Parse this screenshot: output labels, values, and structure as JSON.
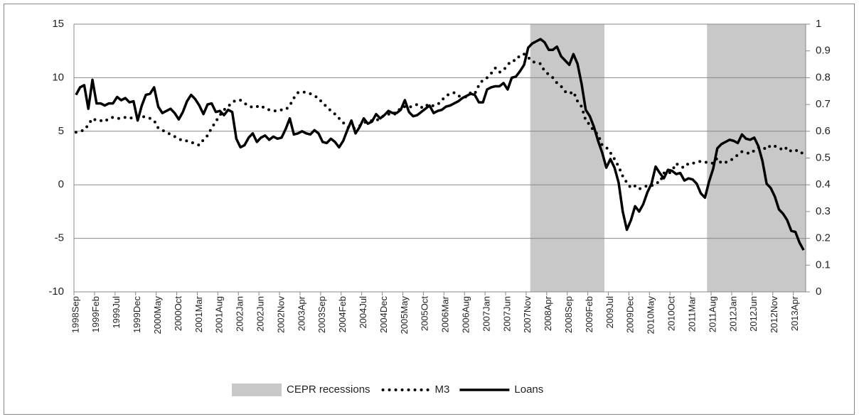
{
  "chart_data": {
    "type": "combo",
    "categories": [
      "1998Sep",
      null,
      null,
      null,
      null,
      "1999Feb",
      null,
      null,
      null,
      null,
      "1999Jul",
      null,
      null,
      null,
      null,
      "1999Dec",
      null,
      null,
      null,
      null,
      "2000May",
      null,
      null,
      null,
      null,
      "2000Oct",
      null,
      null,
      null,
      null,
      "2001Mar",
      null,
      null,
      null,
      null,
      "2001Aug",
      null,
      null,
      null,
      null,
      "2002Jan",
      null,
      null,
      null,
      null,
      "2002Jun",
      null,
      null,
      null,
      null,
      "2002Nov",
      null,
      null,
      null,
      null,
      "2003Apr",
      null,
      null,
      null,
      null,
      "2003Sep",
      null,
      null,
      null,
      null,
      "2004Feb",
      null,
      null,
      null,
      null,
      "2004Jul",
      null,
      null,
      null,
      null,
      "2004Dec",
      null,
      null,
      null,
      null,
      "2005May",
      null,
      null,
      null,
      null,
      "2005Oct",
      null,
      null,
      null,
      null,
      "2006Mar",
      null,
      null,
      null,
      null,
      "2006Aug",
      null,
      null,
      null,
      null,
      "2007Jan",
      null,
      null,
      null,
      null,
      "2007Jun",
      null,
      null,
      null,
      null,
      "2007Nov",
      null,
      null,
      null,
      null,
      "2008Apr",
      null,
      null,
      null,
      null,
      "2008Sep",
      null,
      null,
      null,
      null,
      "2009Feb",
      null,
      null,
      null,
      null,
      "2009Jul",
      null,
      null,
      null,
      null,
      "2009Dec",
      null,
      null,
      null,
      null,
      "2010May",
      null,
      null,
      null,
      null,
      "2010Oct",
      null,
      null,
      null,
      null,
      "2011Mar",
      null,
      null,
      null,
      null,
      "2011Aug",
      null,
      null,
      null,
      null,
      "2012Jan",
      null,
      null,
      null,
      null,
      "2012Jun",
      null,
      null,
      null,
      null,
      "2012Nov",
      null,
      null,
      null,
      null,
      "2013Apr",
      null,
      null
    ],
    "series": [
      {
        "name": "CEPR recessions",
        "type": "bar",
        "axis": "y2",
        "color": "#c8c8c8",
        "values": [
          0,
          0,
          0,
          0,
          0,
          0,
          0,
          0,
          0,
          0,
          0,
          0,
          0,
          0,
          0,
          0,
          0,
          0,
          0,
          0,
          0,
          0,
          0,
          0,
          0,
          0,
          0,
          0,
          0,
          0,
          0,
          0,
          0,
          0,
          0,
          0,
          0,
          0,
          0,
          0,
          0,
          0,
          0,
          0,
          0,
          0,
          0,
          0,
          0,
          0,
          0,
          0,
          0,
          0,
          0,
          0,
          0,
          0,
          0,
          0,
          0,
          0,
          0,
          0,
          0,
          0,
          0,
          0,
          0,
          0,
          0,
          0,
          0,
          0,
          0,
          0,
          0,
          0,
          0,
          0,
          0,
          0,
          0,
          0,
          0,
          0,
          0,
          0,
          0,
          0,
          0,
          0,
          0,
          0,
          0,
          0,
          0,
          0,
          0,
          0,
          0,
          0,
          0,
          0,
          0,
          0,
          0,
          0,
          0,
          0,
          0,
          1,
          1,
          1,
          1,
          1,
          1,
          1,
          1,
          1,
          1,
          1,
          1,
          1,
          1,
          1,
          1,
          1,
          1,
          0,
          0,
          0,
          0,
          0,
          0,
          0,
          0,
          0,
          0,
          0,
          0,
          0,
          0,
          0,
          0,
          0,
          0,
          0,
          0,
          0,
          0,
          0,
          0,
          0,
          1,
          1,
          1,
          1,
          1,
          1,
          1,
          1,
          1,
          1,
          1,
          1,
          1,
          1,
          1,
          1,
          1,
          1,
          1,
          1,
          1,
          1,
          1,
          1
        ]
      },
      {
        "name": "M3",
        "type": "line",
        "style": "dotted",
        "color": "#000000",
        "values": [
          4.9,
          5.0,
          5.1,
          5.6,
          6.2,
          6.0,
          6.0,
          5.9,
          6.2,
          6.3,
          6.2,
          6.2,
          6.3,
          6.2,
          6.3,
          6.3,
          6.4,
          6.3,
          6.2,
          6.0,
          5.3,
          5.1,
          4.9,
          4.7,
          4.5,
          4.3,
          4.1,
          4.1,
          4.0,
          3.8,
          3.7,
          4.2,
          4.6,
          5.3,
          5.9,
          6.5,
          7.0,
          7.3,
          7.7,
          7.9,
          7.9,
          7.6,
          7.4,
          7.2,
          7.3,
          7.4,
          7.1,
          7.0,
          6.9,
          6.9,
          7.0,
          7.0,
          7.4,
          8.1,
          8.6,
          8.7,
          8.6,
          8.5,
          8.3,
          8.1,
          7.6,
          7.3,
          6.9,
          6.6,
          6.2,
          5.8,
          5.4,
          5.2,
          5.3,
          5.5,
          5.8,
          5.9,
          6.0,
          6.0,
          6.2,
          6.5,
          6.6,
          6.5,
          6.7,
          7.2,
          7.3,
          7.2,
          7.4,
          7.5,
          7.2,
          7.5,
          7.3,
          7.4,
          7.5,
          7.9,
          8.3,
          8.5,
          8.6,
          8.3,
          8.2,
          8.2,
          8.6,
          8.5,
          9.3,
          9.8,
          10.0,
          10.4,
          10.9,
          10.5,
          10.7,
          11.2,
          11.6,
          11.6,
          12.1,
          12.2,
          11.9,
          11.5,
          11.4,
          11.3,
          10.6,
          10.3,
          10.0,
          9.5,
          9.2,
          8.7,
          8.5,
          8.7,
          7.8,
          7.3,
          6.0,
          5.6,
          5.0,
          4.7,
          3.7,
          3.5,
          3.0,
          2.4,
          1.7,
          0.8,
          0.2,
          -0.3,
          -0.1,
          -0.4,
          -0.2,
          -0.1,
          -0.1,
          0.2,
          0.2,
          1.1,
          1.0,
          1.3,
          2.0,
          1.7,
          1.6,
          2.0,
          2.0,
          2.1,
          2.2,
          2.1,
          2.1,
          2.0,
          2.5,
          2.0,
          2.1,
          2.2,
          2.5,
          2.8,
          3.1,
          3.0,
          2.9,
          3.2,
          3.5,
          3.5,
          3.3,
          3.7,
          3.6,
          3.5,
          3.2,
          3.5,
          3.1,
          3.2,
          3.2,
          2.8
        ]
      },
      {
        "name": "Loans",
        "type": "line",
        "style": "solid",
        "color": "#000000",
        "values": [
          8.4,
          9.1,
          9.3,
          7.1,
          9.8,
          7.6,
          7.6,
          7.4,
          7.6,
          7.6,
          8.2,
          7.9,
          8.1,
          7.7,
          7.8,
          6.0,
          7.4,
          8.4,
          8.5,
          9.1,
          7.3,
          6.7,
          6.9,
          7.1,
          6.7,
          6.1,
          6.8,
          7.8,
          8.4,
          8.0,
          7.4,
          6.6,
          7.5,
          7.6,
          6.8,
          6.9,
          6.5,
          7.0,
          6.8,
          4.3,
          3.5,
          3.7,
          4.4,
          4.8,
          4.0,
          4.4,
          4.6,
          4.2,
          4.5,
          4.3,
          4.4,
          5.2,
          6.2,
          4.7,
          4.8,
          5.0,
          4.8,
          4.7,
          5.1,
          4.8,
          4.0,
          3.9,
          4.3,
          4.0,
          3.5,
          4.1,
          5.1,
          6.0,
          4.8,
          5.4,
          6.2,
          5.7,
          5.9,
          6.6,
          6.2,
          6.5,
          6.9,
          6.7,
          6.7,
          7.0,
          7.9,
          6.8,
          6.4,
          6.5,
          6.8,
          7.1,
          7.4,
          6.7,
          6.9,
          7.0,
          7.3,
          7.4,
          7.6,
          7.8,
          8.1,
          8.3,
          8.5,
          8.4,
          7.7,
          7.7,
          8.9,
          9.1,
          9.2,
          9.2,
          9.5,
          8.9,
          10.0,
          10.1,
          10.6,
          11.2,
          12.8,
          13.2,
          13.4,
          13.6,
          13.3,
          12.6,
          12.6,
          12.9,
          12.0,
          11.6,
          11.2,
          12.2,
          11.3,
          9.4,
          7.0,
          6.4,
          5.4,
          4.1,
          3.0,
          1.6,
          2.4,
          1.6,
          0.2,
          -2.5,
          -4.2,
          -3.3,
          -2.0,
          -2.5,
          -1.8,
          -0.7,
          0.1,
          1.7,
          1.1,
          0.6,
          1.4,
          1.3,
          1.0,
          1.1,
          0.4,
          0.6,
          0.5,
          0.1,
          -0.8,
          -1.2,
          0.3,
          1.5,
          3.4,
          3.8,
          4.0,
          4.2,
          4.1,
          3.9,
          4.7,
          4.3,
          4.2,
          4.4,
          3.6,
          2.2,
          0.1,
          -0.3,
          -1.1,
          -2.3,
          -2.7,
          -3.3,
          -4.3,
          -4.4,
          -5.4,
          -6.1
        ]
      }
    ],
    "ylim": [
      -10,
      15
    ],
    "yticks": [
      -10,
      -5,
      0,
      5,
      10,
      15
    ],
    "y2lim": [
      0,
      1
    ],
    "y2ticks": [
      0,
      0.1,
      0.2,
      0.3,
      0.4,
      0.5,
      0.6,
      0.7,
      0.8,
      0.9,
      1
    ],
    "grid": true,
    "legend": "bottom"
  }
}
